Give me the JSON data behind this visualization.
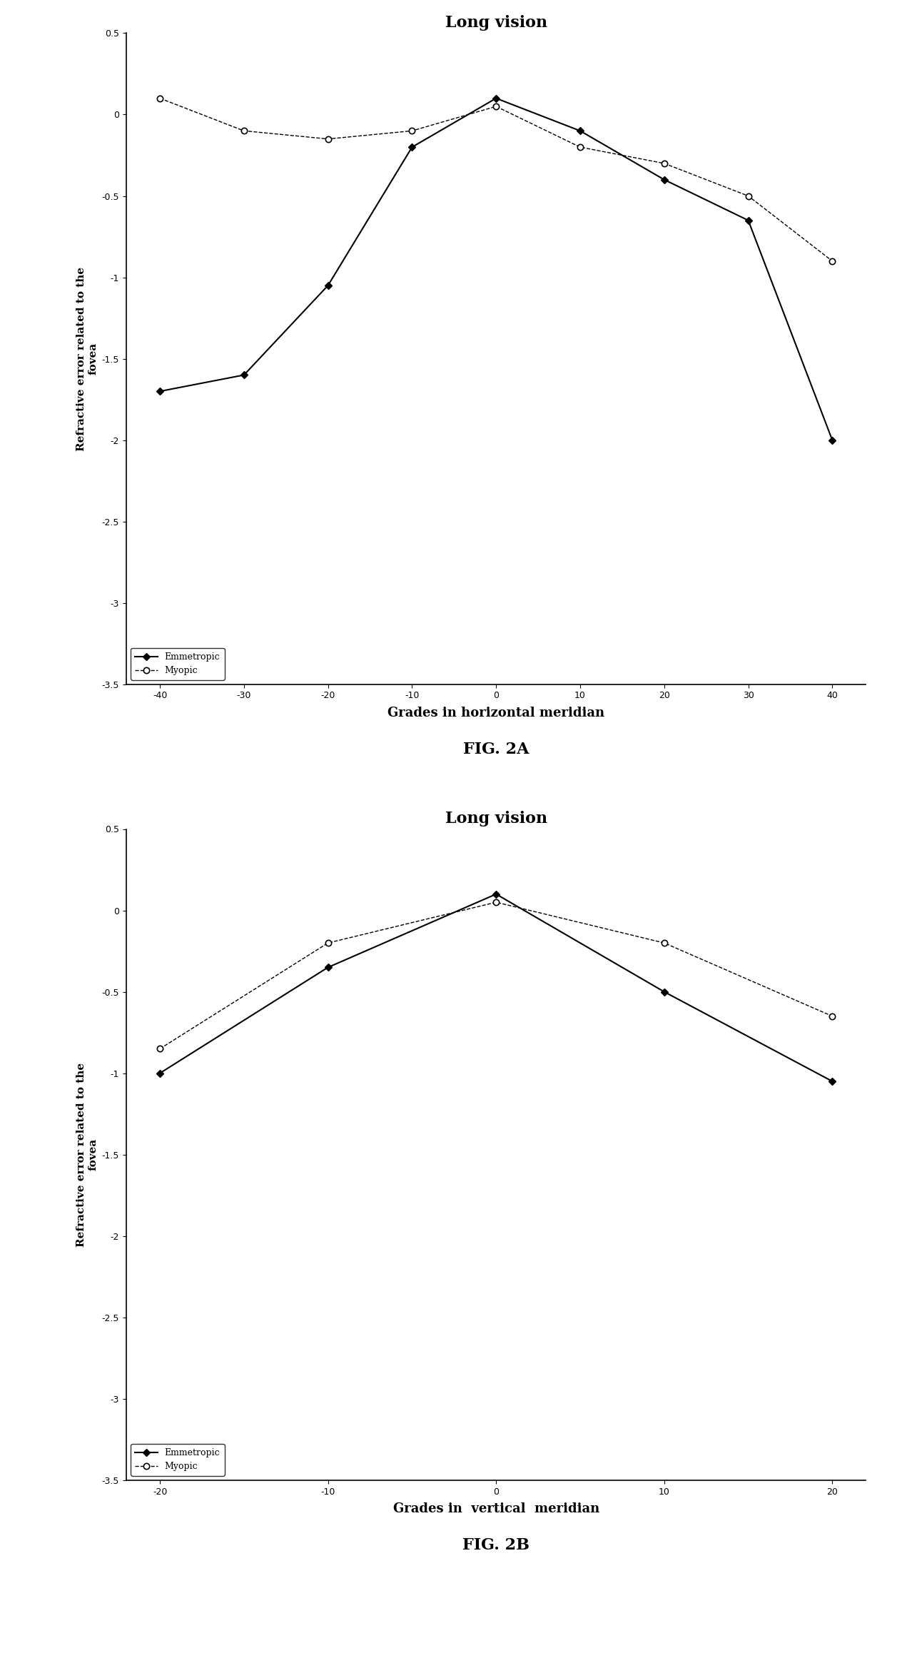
{
  "fig2a": {
    "title": "Long vision",
    "xlabel": "Grades in horizontal meridian",
    "ylabel": "Refractive error related to the\nfovea",
    "x": [
      -40,
      -30,
      -20,
      -10,
      0,
      10,
      20,
      30,
      40
    ],
    "emmetropic_y": [
      -1.7,
      -1.6,
      -1.05,
      -0.2,
      0.1,
      -0.1,
      -0.4,
      -0.65,
      -2.0
    ],
    "myopic_y": [
      0.1,
      -0.1,
      -0.15,
      -0.1,
      0.05,
      -0.2,
      -0.3,
      -0.5,
      -0.9
    ],
    "ylim": [
      -3.5,
      0.5
    ],
    "yticks": [
      0.5,
      0.0,
      -0.5,
      -1.0,
      -1.5,
      -2.0,
      -2.5,
      -3.0,
      -3.5
    ],
    "ytick_labels": [
      "0.5",
      "0",
      "-0.5",
      "-1",
      "-1.5",
      "-2",
      "-2.5",
      "-3",
      "-3.5"
    ],
    "xticks": [
      -40,
      -30,
      -20,
      -10,
      0,
      10,
      20,
      30,
      40
    ],
    "xtick_labels": [
      "-40",
      "-30",
      "-20",
      "-10",
      "0",
      "10",
      "20",
      "30",
      "40"
    ]
  },
  "fig2b": {
    "title": "Long vision",
    "xlabel": "Grades in  vertical  meridian",
    "ylabel": "Refractive error related to the\nfovea",
    "x": [
      -20,
      -10,
      0,
      10,
      20
    ],
    "emmetropic_y": [
      -1.0,
      -0.35,
      0.1,
      -0.5,
      -1.05
    ],
    "myopic_y": [
      -0.85,
      -0.2,
      0.05,
      -0.2,
      -0.65
    ],
    "ylim": [
      -3.5,
      0.5
    ],
    "yticks": [
      0.5,
      0.0,
      -0.5,
      -1.0,
      -1.5,
      -2.0,
      -2.5,
      -3.0,
      -3.5
    ],
    "ytick_labels": [
      "0.5",
      "0",
      "-0.5",
      "-1",
      "-1.5",
      "-2",
      "-2.5",
      "-3",
      "-3.5"
    ],
    "xticks": [
      -20,
      -10,
      0,
      10,
      20
    ],
    "xtick_labels": [
      "-20",
      "-10",
      "0",
      "10",
      "20"
    ]
  },
  "fig2a_label": "FIG. 2A",
  "fig2b_label": "FIG. 2B",
  "legend_emmetropic": "Emmetropic",
  "legend_myopic": "Myopic",
  "bg_color": "#ffffff"
}
